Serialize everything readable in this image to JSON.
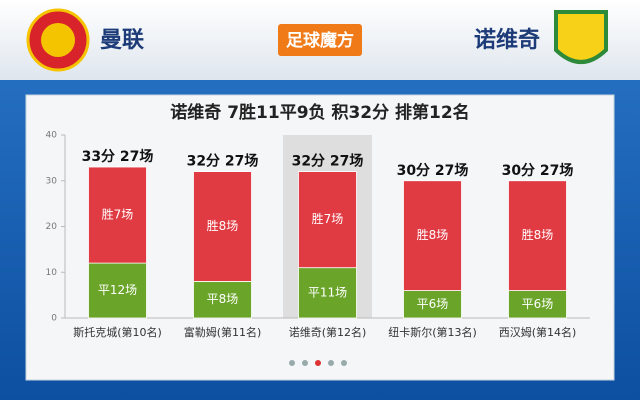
{
  "header": {
    "home": "曼联",
    "brand": "足球魔方",
    "away": "诺维奇"
  },
  "chart_data": {
    "type": "stacked_bar",
    "title": "诺维奇 7胜11平9负 积32分 排第12名",
    "categories": [
      "斯托克城(第10名)",
      "富勒姆(第11名)",
      "诺维奇(第12名)",
      "纽卡斯尔(第13名)",
      "西汉姆(第14名)"
    ],
    "series": [
      {
        "color": "#6aa52a",
        "values": [
          12,
          8,
          11,
          6,
          6
        ],
        "labels": [
          "平12场",
          "平8场",
          "平11场",
          "平6场",
          "平6场"
        ]
      },
      {
        "color": "#e03a42",
        "values": [
          21,
          24,
          21,
          24,
          24
        ],
        "labels": [
          "胜7场",
          "胜8场",
          "胜7场",
          "胜8场",
          "胜8场"
        ]
      }
    ],
    "total_labels": [
      "33分 27场",
      "32分 27场",
      "32分 27场",
      "30分 27场",
      "30分 27场"
    ],
    "highlight": 2,
    "ylim": [
      0,
      40
    ],
    "yticks": [
      0,
      10,
      20,
      30,
      40
    ]
  }
}
